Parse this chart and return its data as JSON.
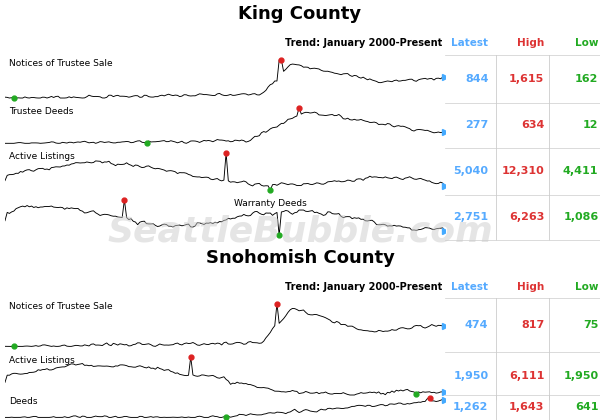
{
  "title_king": "King County",
  "title_snohomish": "Snohomish County",
  "trend_label": "Trend: January 2000-Present",
  "col_latest": "Latest",
  "col_high": "High",
  "col_low": "Low",
  "col_latest_color": "#55aaff",
  "col_high_color": "#dd3333",
  "col_low_color": "#22aa22",
  "watermark": "SeattleBubble.com",
  "king_rows": [
    {
      "label": "Notices of Trustee Sale",
      "latest": "844",
      "high": "1,615",
      "low": "162",
      "label_right": false
    },
    {
      "label": "Trustee Deeds",
      "latest": "277",
      "high": "634",
      "low": "12",
      "label_right": false
    },
    {
      "label": "Active Listings",
      "latest": "5,040",
      "high": "12,310",
      "low": "4,411",
      "label_right": false
    },
    {
      "label": "Warranty Deeds",
      "latest": "2,751",
      "high": "6,263",
      "low": "1,086",
      "label_right": true
    }
  ],
  "snohomish_rows": [
    {
      "label": "Notices of Trustee Sale",
      "latest": "474",
      "high": "817",
      "low": "75",
      "label_right": false
    },
    {
      "label": "Active Listings",
      "latest": "1,950",
      "high": "6,111",
      "low": "1,950",
      "label_right": false
    },
    {
      "label": "Deeds",
      "latest": "1,262",
      "high": "1,643",
      "low": "641",
      "label_right": false
    }
  ],
  "bg_color": "#ffffff",
  "divider_color": "#000000",
  "line_color": "#000000",
  "peak_color": "#dd2222",
  "low_color": "#22aa22",
  "latest_arrow_color": "#44aaff"
}
